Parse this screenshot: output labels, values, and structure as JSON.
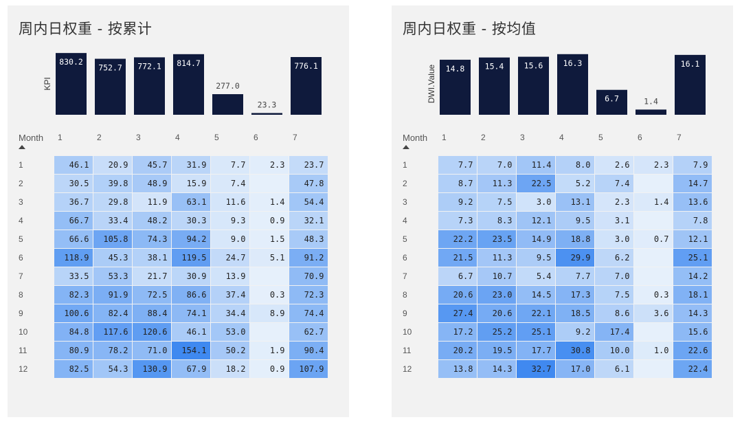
{
  "chart_data": [
    {
      "type": "bar",
      "title": "周内日权重 - 按累计",
      "ylabel": "KPI",
      "xlabel": "",
      "categories": [
        "1",
        "2",
        "3",
        "4",
        "5",
        "6",
        "7"
      ],
      "values": [
        830.2,
        752.7,
        772.1,
        814.7,
        277.0,
        23.3,
        776.1
      ],
      "value_labels": [
        "830.2",
        "752.7",
        "772.1",
        "814.7",
        "277.0",
        "23.3",
        "776.1"
      ],
      "ylim": [
        0,
        850
      ],
      "bar_color": "#0f1a3c",
      "table": {
        "type": "heatmap",
        "corner_label": "Month",
        "columns": [
          "1",
          "2",
          "3",
          "4",
          "5",
          "6",
          "7"
        ],
        "rows": [
          "1",
          "2",
          "3",
          "4",
          "5",
          "6",
          "7",
          "8",
          "9",
          "10",
          "11",
          "12"
        ],
        "values": [
          [
            46.1,
            20.9,
            45.7,
            31.9,
            7.7,
            2.3,
            23.7
          ],
          [
            30.5,
            39.8,
            48.9,
            15.9,
            7.4,
            null,
            47.8
          ],
          [
            36.7,
            29.8,
            11.9,
            63.1,
            11.6,
            1.4,
            54.4
          ],
          [
            66.7,
            33.4,
            48.2,
            30.3,
            9.3,
            0.9,
            32.1
          ],
          [
            66.6,
            105.8,
            74.3,
            94.2,
            9.0,
            1.5,
            48.3
          ],
          [
            118.9,
            45.3,
            38.1,
            119.5,
            24.7,
            5.1,
            91.2
          ],
          [
            33.5,
            53.3,
            21.7,
            30.9,
            13.9,
            null,
            70.9
          ],
          [
            82.3,
            91.9,
            72.5,
            86.6,
            37.4,
            0.3,
            72.3
          ],
          [
            100.6,
            82.4,
            88.4,
            74.1,
            34.4,
            8.9,
            74.4
          ],
          [
            84.8,
            117.6,
            120.6,
            46.1,
            53.0,
            null,
            62.7
          ],
          [
            80.9,
            78.2,
            71.0,
            154.1,
            50.2,
            1.9,
            90.4
          ],
          [
            82.5,
            54.3,
            130.9,
            67.9,
            18.2,
            0.9,
            107.9
          ]
        ],
        "labels": [
          [
            "46.1",
            "20.9",
            "45.7",
            "31.9",
            "7.7",
            "2.3",
            "23.7"
          ],
          [
            "30.5",
            "39.8",
            "48.9",
            "15.9",
            "7.4",
            "",
            "47.8"
          ],
          [
            "36.7",
            "29.8",
            "11.9",
            "63.1",
            "11.6",
            "1.4",
            "54.4"
          ],
          [
            "66.7",
            "33.4",
            "48.2",
            "30.3",
            "9.3",
            "0.9",
            "32.1"
          ],
          [
            "66.6",
            "105.8",
            "74.3",
            "94.2",
            "9.0",
            "1.5",
            "48.3"
          ],
          [
            "118.9",
            "45.3",
            "38.1",
            "119.5",
            "24.7",
            "5.1",
            "91.2"
          ],
          [
            "33.5",
            "53.3",
            "21.7",
            "30.9",
            "13.9",
            "",
            "70.9"
          ],
          [
            "82.3",
            "91.9",
            "72.5",
            "86.6",
            "37.4",
            "0.3",
            "72.3"
          ],
          [
            "100.6",
            "82.4",
            "88.4",
            "74.1",
            "34.4",
            "8.9",
            "74.4"
          ],
          [
            "84.8",
            "117.6",
            "120.6",
            "46.1",
            "53.0",
            "",
            "62.7"
          ],
          [
            "80.9",
            "78.2",
            "71.0",
            "154.1",
            "50.2",
            "1.9",
            "90.4"
          ],
          [
            "82.5",
            "54.3",
            "130.9",
            "67.9",
            "18.2",
            "0.9",
            "107.9"
          ]
        ],
        "color_min": "#e6f0fb",
        "color_max": "#3a86f0",
        "value_range": [
          0,
          160
        ]
      }
    },
    {
      "type": "bar",
      "title": "周内日权重 - 按均值",
      "ylabel": "DWI.Value",
      "xlabel": "",
      "categories": [
        "1",
        "2",
        "3",
        "4",
        "5",
        "6",
        "7"
      ],
      "values": [
        14.8,
        15.4,
        15.6,
        16.3,
        6.7,
        1.4,
        16.1
      ],
      "value_labels": [
        "14.8",
        "15.4",
        "15.6",
        "16.3",
        "6.7",
        "1.4",
        "16.1"
      ],
      "ylim": [
        0,
        17
      ],
      "bar_color": "#0f1a3c",
      "table": {
        "type": "heatmap",
        "corner_label": "Month",
        "columns": [
          "1",
          "2",
          "3",
          "4",
          "5",
          "6",
          "7"
        ],
        "rows": [
          "1",
          "2",
          "3",
          "4",
          "5",
          "6",
          "7",
          "8",
          "9",
          "10",
          "11",
          "12"
        ],
        "values": [
          [
            7.7,
            7.0,
            11.4,
            8.0,
            2.6,
            2.3,
            7.9
          ],
          [
            8.7,
            11.3,
            22.5,
            5.2,
            7.4,
            null,
            14.7
          ],
          [
            9.2,
            7.5,
            3.0,
            13.1,
            2.3,
            1.4,
            13.6
          ],
          [
            7.3,
            8.3,
            12.1,
            9.5,
            3.1,
            null,
            7.8
          ],
          [
            22.2,
            23.5,
            14.9,
            18.8,
            3.0,
            0.7,
            12.1
          ],
          [
            21.5,
            11.3,
            9.5,
            29.9,
            6.2,
            null,
            25.1
          ],
          [
            6.7,
            10.7,
            5.4,
            7.7,
            7.0,
            null,
            14.2
          ],
          [
            20.6,
            23.0,
            14.5,
            17.3,
            7.5,
            0.3,
            18.1
          ],
          [
            27.4,
            20.6,
            22.1,
            18.5,
            8.6,
            3.6,
            14.3
          ],
          [
            17.2,
            25.2,
            25.1,
            9.2,
            17.4,
            null,
            15.6
          ],
          [
            20.2,
            19.5,
            17.7,
            30.8,
            10.0,
            1.0,
            22.6
          ],
          [
            13.8,
            14.3,
            32.7,
            17.0,
            6.1,
            null,
            22.4
          ]
        ],
        "labels": [
          [
            "7.7",
            "7.0",
            "11.4",
            "8.0",
            "2.6",
            "2.3",
            "7.9"
          ],
          [
            "8.7",
            "11.3",
            "22.5",
            "5.2",
            "7.4",
            "",
            "14.7"
          ],
          [
            "9.2",
            "7.5",
            "3.0",
            "13.1",
            "2.3",
            "1.4",
            "13.6"
          ],
          [
            "7.3",
            "8.3",
            "12.1",
            "9.5",
            "3.1",
            "",
            "7.8"
          ],
          [
            "22.2",
            "23.5",
            "14.9",
            "18.8",
            "3.0",
            "0.7",
            "12.1"
          ],
          [
            "21.5",
            "11.3",
            "9.5",
            "29.9",
            "6.2",
            "",
            "25.1"
          ],
          [
            "6.7",
            "10.7",
            "5.4",
            "7.7",
            "7.0",
            "",
            "14.2"
          ],
          [
            "20.6",
            "23.0",
            "14.5",
            "17.3",
            "7.5",
            "0.3",
            "18.1"
          ],
          [
            "27.4",
            "20.6",
            "22.1",
            "18.5",
            "8.6",
            "3.6",
            "14.3"
          ],
          [
            "17.2",
            "25.2",
            "25.1",
            "9.2",
            "17.4",
            "",
            "15.6"
          ],
          [
            "20.2",
            "19.5",
            "17.7",
            "30.8",
            "10.0",
            "1.0",
            "22.6"
          ],
          [
            "13.8",
            "14.3",
            "32.7",
            "17.0",
            "6.1",
            "",
            "22.4"
          ]
        ],
        "color_min": "#e6f0fb",
        "color_max": "#3a86f0",
        "value_range": [
          0,
          34
        ]
      }
    }
  ]
}
